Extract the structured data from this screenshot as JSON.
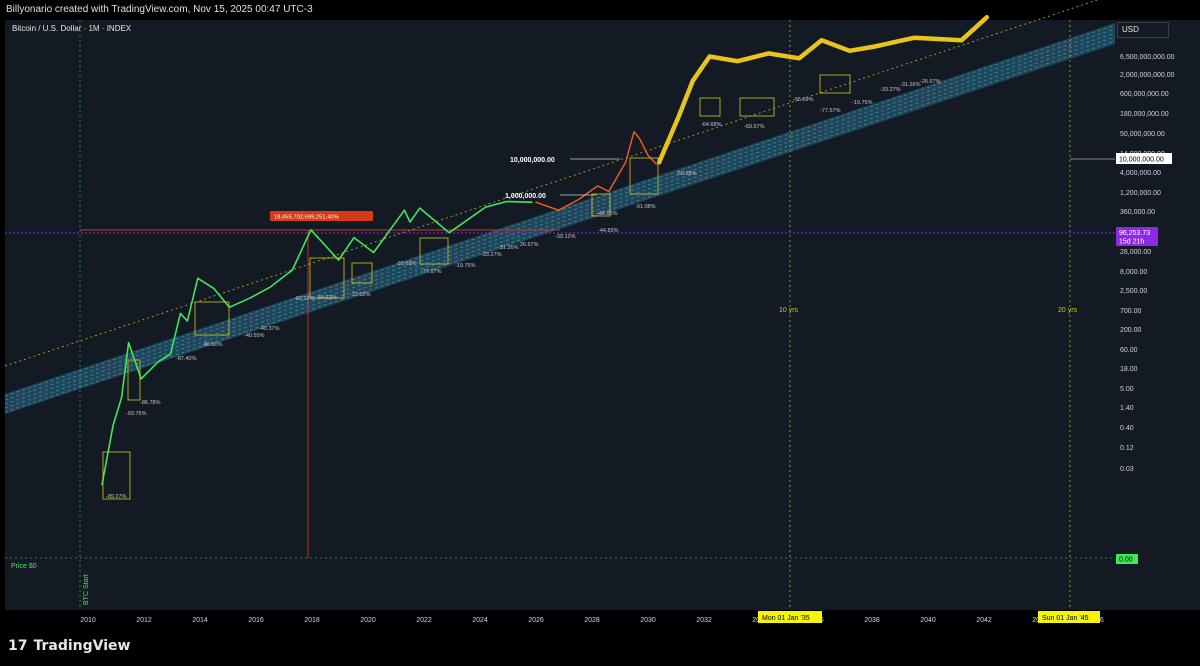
{
  "header": {
    "caption": "Billyonario created with TradingView.com, Nov 15, 2025 00:47 UTC-3"
  },
  "symbol": {
    "title": "Bitcoin / U.S. Dollar · 1M · INDEX"
  },
  "axis_unit": "USD",
  "footer": {
    "brand": "TradingView"
  },
  "colors": {
    "background": "#131a24",
    "history": "#41e65a",
    "projection_red": "#ff5a1e",
    "projection_yellow": "#e8c41c",
    "channel": "#3a97b8",
    "price_line": "#7b2cff"
  },
  "chart_data": {
    "type": "line",
    "title": "Bitcoin / U.S. Dollar · 1M · INDEX",
    "y_scale": "log",
    "y_unit": "USD",
    "x_ticks": [
      "2010",
      "2012",
      "2014",
      "2016",
      "2018",
      "2020",
      "2022",
      "2024",
      "2026",
      "2028",
      "2030",
      "2032",
      "2034",
      "2036",
      "2038",
      "2040",
      "2042",
      "2044",
      "2046"
    ],
    "y_ticks": [
      "6,500,000,000.00",
      "2,000,000,000.00",
      "600,000,000.00",
      "180,000,000.00",
      "50,000,000.00",
      "14,000,000.00",
      "4,000,000.00",
      "1,200,000.00",
      "360,000.00",
      "100,000.00",
      "28,000.00",
      "8,000.00",
      "2,500.00",
      "700.00",
      "200.00",
      "60.00",
      "18.00",
      "5.00",
      "1.40",
      "0.40",
      "0.12",
      "0.03"
    ],
    "current_price": {
      "value": "96,253.73",
      "countdown": "15d 21h"
    },
    "marker_label": "10,000,000.00",
    "zero_label": "0.00",
    "series": [
      {
        "name": "",
        "points": [
          [
            2010.5,
            0.006
          ],
          [
            2010.9,
            0.2
          ],
          [
            2011.2,
            1
          ],
          [
            2011.45,
            25
          ],
          [
            2011.9,
            3
          ],
          [
            2012.5,
            8
          ],
          [
            2012.95,
            13
          ],
          [
            2013.3,
            140
          ],
          [
            2013.55,
            90
          ],
          [
            2013.92,
            1100
          ],
          [
            2014.5,
            600
          ],
          [
            2015.05,
            200
          ],
          [
            2015.8,
            350
          ],
          [
            2016.5,
            650
          ],
          [
            2017.3,
            1800
          ],
          [
            2017.96,
            19000
          ],
          [
            2018.95,
            3200
          ],
          [
            2019.5,
            12000
          ],
          [
            2020.2,
            5000
          ],
          [
            2021.3,
            60000
          ],
          [
            2021.5,
            30000
          ],
          [
            2021.85,
            68000
          ],
          [
            2022.9,
            16000
          ],
          [
            2024.2,
            72000
          ],
          [
            2024.95,
            100000
          ],
          [
            2025.85,
            96253.73
          ]
        ]
      },
      {
        "name": "",
        "points": [
          [
            2026,
            96253.73
          ],
          [
            2026.8,
            60000
          ],
          [
            2027.5,
            110000
          ],
          [
            2028.2,
            250000
          ],
          [
            2028.6,
            180000
          ],
          [
            2029.2,
            1000000
          ],
          [
            2029.5,
            6000000
          ],
          [
            2029.7,
            4000000
          ],
          [
            2030,
            1500000
          ],
          [
            2030.3,
            900000
          ]
        ]
      },
      {
        "name": "",
        "points": [
          [
            2030.4,
            1000000
          ],
          [
            2031.1,
            15000000
          ],
          [
            2031.6,
            120000000
          ],
          [
            2032.2,
            500000000
          ],
          [
            2033.2,
            380000000
          ],
          [
            2034.3,
            600000000
          ],
          [
            2035.4,
            450000000
          ],
          [
            2036.2,
            1300000000
          ],
          [
            2037.2,
            700000000
          ],
          [
            2038.1,
            900000000
          ],
          [
            2039.5,
            1500000000
          ],
          [
            2041.2,
            1300000000
          ],
          [
            2042.1,
            5000000000
          ]
        ]
      }
    ],
    "annotations": {
      "corrections": [
        "-89.27%",
        "-93.75%",
        "-86.78%",
        "-87.40%",
        "-86.60%",
        "-40.37%",
        "-40.55%",
        "-80.32%",
        "-84.22%",
        "-72.02%",
        "-55.69%",
        "-77.57%",
        "-19.75%",
        "-33.27%",
        "-31.26%",
        "-26.67%",
        "-39.12%",
        "-44.83%",
        "-46.85%",
        "-91.08%",
        "-50.68%",
        "-64.68%",
        "-69.57%",
        "-55.69%",
        "-77.57%",
        "-19.75%",
        "-33.27%",
        "-31.26%",
        "-26.67%"
      ],
      "range_label": "18,455,702,699,251.40%",
      "levels": [
        "10,000,000.00",
        "1,000,000.00"
      ],
      "price_zero": "Price $0",
      "btc_start": "BTC Start",
      "cycle_10": "10 yrs",
      "cycle_20": "20 yrs",
      "date_10": "Mon 01 Jan '35",
      "date_20": "Sun 01 Jan '45"
    }
  }
}
